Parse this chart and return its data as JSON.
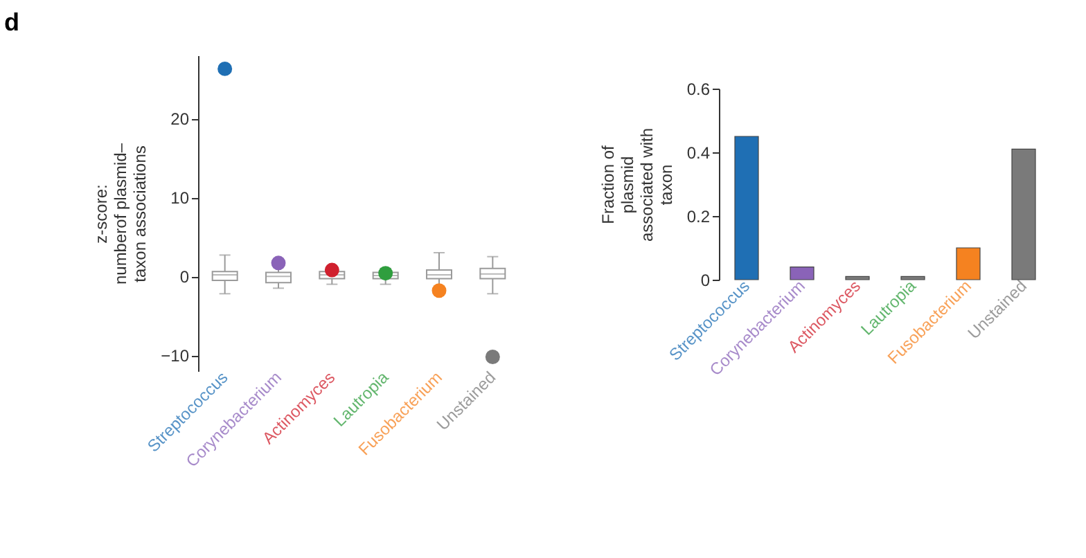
{
  "chart_data": [
    {
      "type": "box",
      "title": "d",
      "ylabel": "z-score:\nnumberof plasmid–\ntaxon associations",
      "categories": [
        "Streptococcus",
        "Corynebacterium",
        "Actinomyces",
        "Lautropia",
        "Fusobacterium",
        "Unstained"
      ],
      "boxes": [
        {
          "low": -2.2,
          "q1": -0.5,
          "median": 0.2,
          "q3": 0.6,
          "high": 2.7
        },
        {
          "low": -1.5,
          "q1": -0.8,
          "median": 0,
          "q3": 0.5,
          "high": 1.5
        },
        {
          "low": -1,
          "q1": -0.3,
          "median": 0.2,
          "q3": 0.6,
          "high": 1.2
        },
        {
          "low": -1,
          "q1": -0.3,
          "median": 0.1,
          "q3": 0.5,
          "high": 1
        },
        {
          "low": -1.5,
          "q1": -0.3,
          "median": 0.2,
          "q3": 0.8,
          "high": 3
        },
        {
          "low": -2.2,
          "q1": -0.3,
          "median": 0.3,
          "q3": 1,
          "high": 2.5
        }
      ],
      "series": [
        {
          "type": "scatter",
          "x": [
            "Streptococcus",
            "Corynebacterium",
            "Actinomyces",
            "Lautropia",
            "Fusobacterium",
            "Unstained"
          ],
          "values": [
            26.3,
            1.7,
            0.8,
            0.4,
            -1.8,
            -10.2
          ],
          "colors": [
            "#1f6fb4",
            "#8a63b8",
            "#d0202e",
            "#2f9e3e",
            "#f58220",
            "#7a7a7a"
          ]
        }
      ],
      "marker": "circle",
      "ylim": [
        -12,
        28
      ],
      "yticks": [
        -10,
        0,
        10,
        20
      ],
      "grid": false
    },
    {
      "type": "bar",
      "ylabel": "Fraction of\nplasmid\nassociated with\ntaxon",
      "categories": [
        "Streptococcus",
        "Corynebacterium",
        "Actinomyces",
        "Lautropia",
        "Fusobacterium",
        "Unstained"
      ],
      "values": [
        0.45,
        0.04,
        0.01,
        0.01,
        0.1,
        0.41
      ],
      "colors": [
        "#1f6fb4",
        "#8a63b8",
        "#7a7a7a",
        "#7a7a7a",
        "#f58220",
        "#7a7a7a"
      ],
      "ylim": [
        0,
        0.6
      ],
      "yticks": [
        0,
        0.2,
        0.4,
        0.6
      ],
      "grid": false
    }
  ]
}
